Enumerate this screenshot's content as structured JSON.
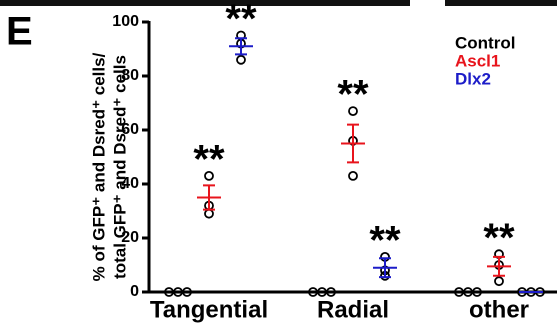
{
  "panel": "E",
  "chart_data": {
    "type": "dotplot",
    "ylabel": [
      "% of GFP⁺ and Dsred⁺ cells/",
      "total GFP⁺ and Dsred⁺ cells"
    ],
    "categories": [
      "Tangential",
      "Radial",
      "other"
    ],
    "ylim": [
      0,
      100
    ],
    "yticks": [
      0,
      20,
      40,
      60,
      80,
      100
    ],
    "series": [
      {
        "name": "Control",
        "color": "#000000",
        "values": [
          0,
          0,
          0
        ],
        "errors": [
          0,
          0,
          0
        ],
        "points": [
          [
            0,
            0,
            0
          ],
          [
            0,
            0,
            0
          ],
          [
            0,
            0,
            0
          ]
        ],
        "annotations": [
          null,
          null,
          null
        ]
      },
      {
        "name": "Ascl1",
        "color": "#e8141c",
        "values": [
          35,
          55,
          9.5
        ],
        "errors": [
          4.5,
          7,
          3.5
        ],
        "points": [
          [
            43,
            32,
            29
          ],
          [
            67,
            56,
            43
          ],
          [
            14,
            10,
            4
          ]
        ],
        "annotations": [
          "**",
          "**",
          "**"
        ]
      },
      {
        "name": "Dlx2",
        "color": "#1c1cc8",
        "values": [
          91,
          9,
          0
        ],
        "errors": [
          3,
          3.5,
          0
        ],
        "points": [
          [
            95,
            92,
            86
          ],
          [
            13,
            8,
            6
          ],
          [
            0,
            0,
            0
          ]
        ],
        "annotations": [
          "**",
          "**",
          null
        ]
      }
    ]
  }
}
